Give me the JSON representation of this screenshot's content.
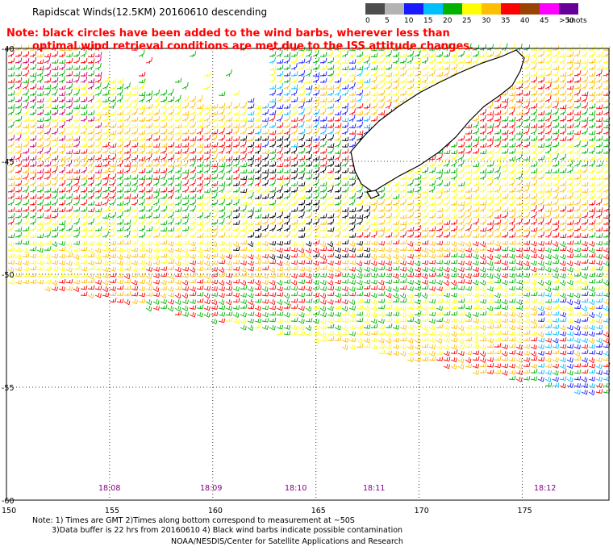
{
  "header": {
    "title": "Rapidscat Winds(12.5KM) 20160610 descending",
    "note_line1": "Note: black circles have been added to the wind barbs, wherever less than",
    "note_line2": "optimal wind retrieval conditions are met due to the ISS attitude changes."
  },
  "scale": {
    "units": "knots",
    "labels": [
      "0",
      "5",
      "10",
      "15",
      "20",
      "25",
      "30",
      "35",
      "40",
      "45",
      ">50"
    ],
    "colors": [
      "#4d4d4d",
      "#b3b3b3",
      "#1a1aff",
      "#00bfff",
      "#00b300",
      "#ffff00",
      "#ffbf00",
      "#ff0000",
      "#994400",
      "#ff00ff",
      "#660099"
    ]
  },
  "axes": {
    "lon_labels": [
      "150",
      "155",
      "160",
      "165",
      "170",
      "175"
    ],
    "lat_labels": [
      "-40",
      "-45",
      "-50",
      "-55",
      "-60"
    ],
    "time_labels": [
      "18:08",
      "18:09",
      "18:10",
      "18:11",
      "18:12"
    ]
  },
  "footer": {
    "line1": "Note: 1) Times are GMT 2)Times along bottom correspond to measurement at ~50S",
    "line2": "3)Data buffer is 22 hrs from 20160610 4) Black wind barbs indicate possible contamination",
    "line3": "NOAA/NESDIS/Center for Satellite Applications and Research"
  }
}
